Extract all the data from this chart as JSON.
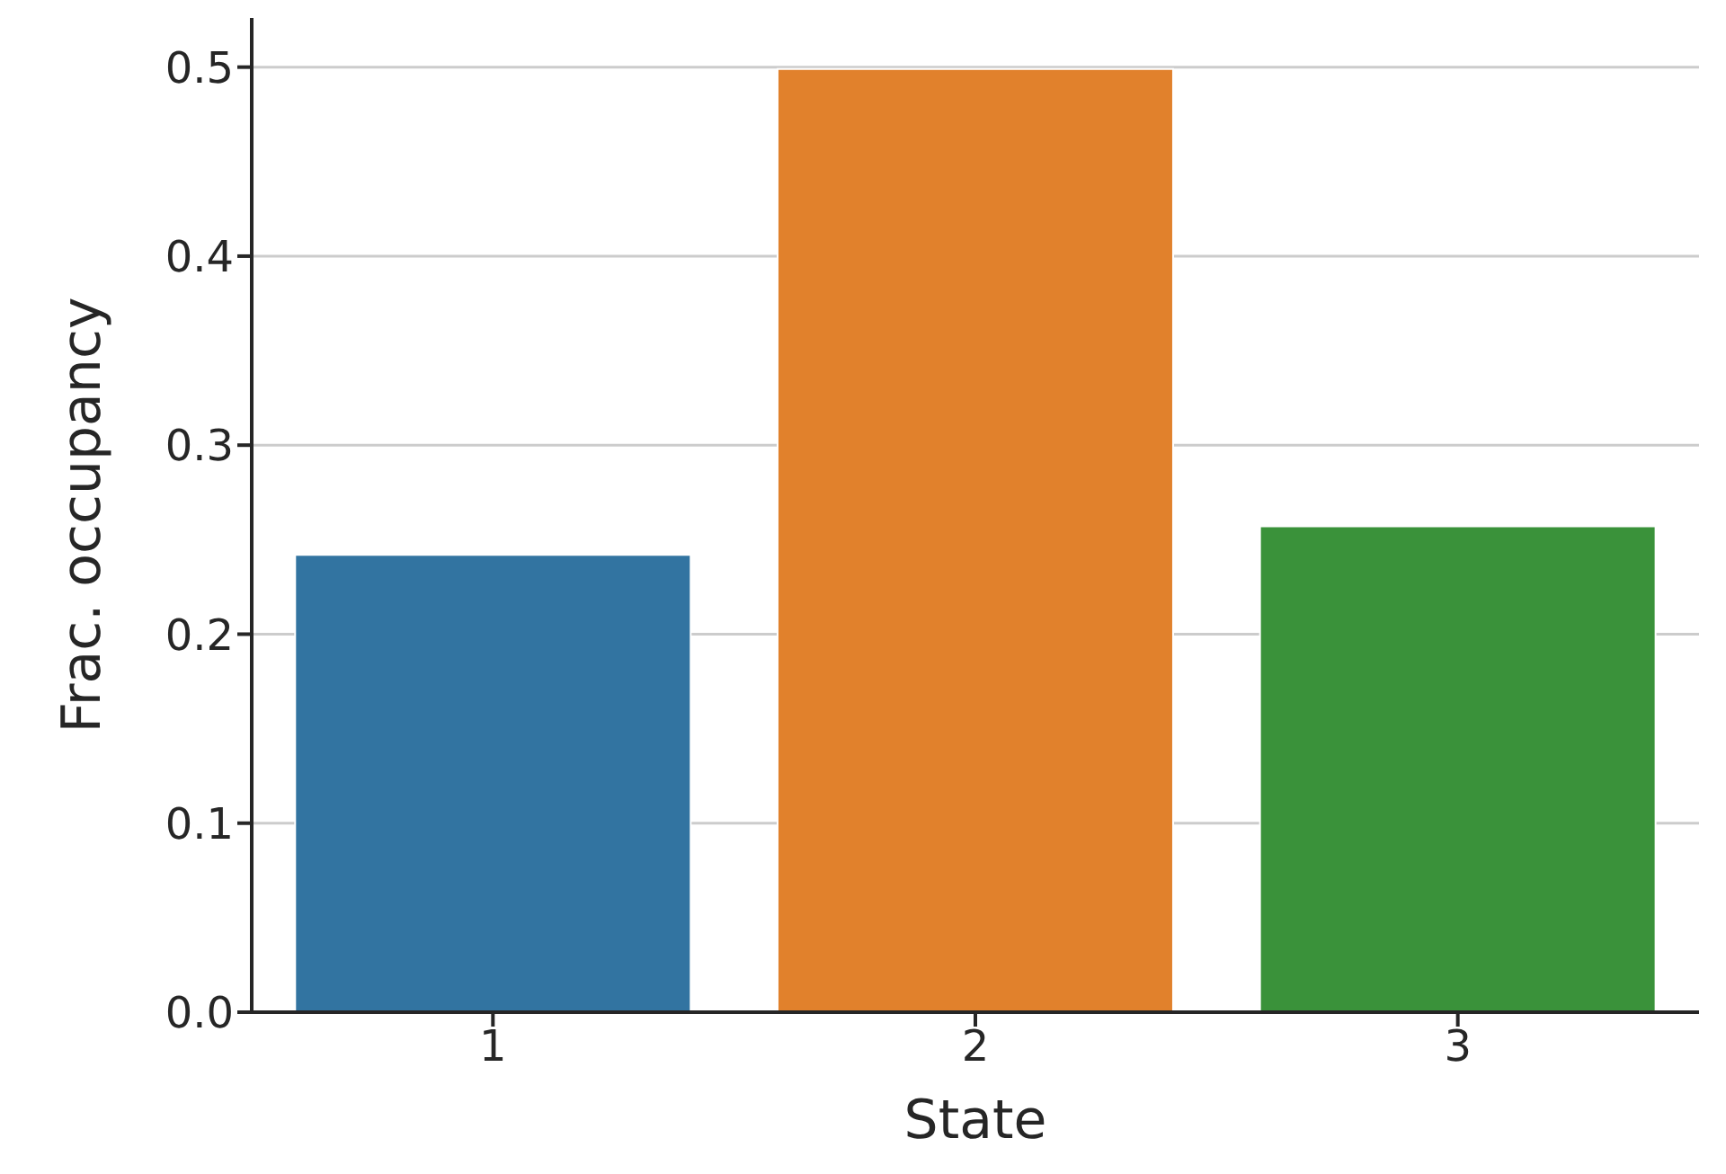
{
  "chart_data": {
    "type": "bar",
    "xlabel": "State",
    "ylabel": "Frac. occupancy",
    "categories": [
      "1",
      "2",
      "3"
    ],
    "values": [
      0.242,
      0.499,
      0.257
    ],
    "colors": [
      "#3274a1",
      "#e1812c",
      "#3a923a"
    ],
    "ylim": [
      0,
      0.526
    ],
    "yticks": [
      {
        "value": 0,
        "label": "0.0"
      },
      0.1,
      0.2,
      0.3,
      0.4,
      0.5
    ],
    "grid": "y"
  }
}
